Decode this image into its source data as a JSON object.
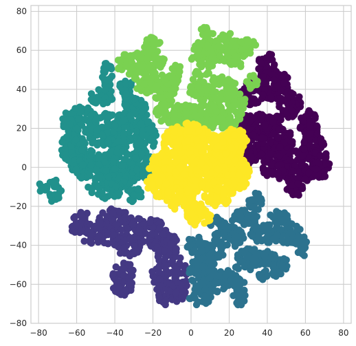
{
  "chart_data": {
    "type": "scatter",
    "title": "",
    "xlabel": "",
    "ylabel": "",
    "xlim": [
      -84,
      84
    ],
    "ylim": [
      -80,
      83
    ],
    "xticks": [
      -80,
      -60,
      -40,
      -20,
      0,
      20,
      40,
      60,
      80
    ],
    "yticks": [
      -80,
      -60,
      -40,
      -20,
      0,
      20,
      40,
      60,
      80
    ],
    "xtick_labels": [
      "−80",
      "−60",
      "−40",
      "−20",
      "0",
      "20",
      "40",
      "60",
      "80"
    ],
    "ytick_labels": [
      "−80",
      "−60",
      "−40",
      "−20",
      "0",
      "20",
      "40",
      "60",
      "80"
    ],
    "grid": true,
    "background": "#ffffff",
    "grid_color": "#cccccc",
    "series": [
      {
        "color": "#440154",
        "blobs": [
          [
            40,
            52,
            5,
            7
          ],
          [
            44,
            42,
            8,
            8
          ],
          [
            32,
            38,
            7,
            6
          ],
          [
            52,
            32,
            6,
            7
          ],
          [
            40,
            22,
            9,
            6
          ],
          [
            30,
            20,
            6,
            7
          ],
          [
            62,
            22,
            5,
            8
          ],
          [
            64,
            10,
            6,
            8
          ],
          [
            57,
            0,
            9,
            10
          ],
          [
            44,
            2,
            7,
            9
          ],
          [
            35,
            10,
            8,
            8
          ],
          [
            48,
            14,
            6,
            6
          ],
          [
            68,
            2,
            5,
            8
          ],
          [
            55,
            -10,
            6,
            5
          ],
          [
            28,
            4,
            4,
            6
          ]
        ]
      },
      {
        "color": "#443983",
        "blobs": [
          [
            -57,
            -27,
            5,
            4
          ],
          [
            -52,
            -34,
            7,
            5
          ],
          [
            -40,
            -28,
            9,
            7
          ],
          [
            -33,
            -40,
            7,
            6
          ],
          [
            -42,
            -37,
            4,
            4
          ],
          [
            -21,
            -33,
            7,
            8
          ],
          [
            -13,
            -41,
            6,
            9
          ],
          [
            -16,
            -55,
            5,
            6
          ],
          [
            -12,
            -65,
            7,
            6
          ],
          [
            -35,
            -55,
            6,
            6
          ],
          [
            -36,
            -62,
            5,
            4
          ],
          [
            -6,
            -57,
            4,
            12
          ],
          [
            -60,
            -31,
            3,
            3
          ],
          [
            -28,
            -30,
            4,
            4
          ]
        ]
      },
      {
        "color": "#21918c",
        "blobs": [
          [
            -44,
            45,
            3,
            9
          ],
          [
            -47,
            36,
            6,
            4
          ],
          [
            -58,
            24,
            10,
            7
          ],
          [
            -42,
            18,
            12,
            10
          ],
          [
            -62,
            10,
            7,
            7
          ],
          [
            -55,
            2,
            8,
            8
          ],
          [
            -38,
            0,
            12,
            10
          ],
          [
            -30,
            28,
            7,
            8
          ],
          [
            -24,
            16,
            6,
            8
          ],
          [
            -26,
            2,
            6,
            8
          ],
          [
            -44,
            -10,
            10,
            6
          ],
          [
            -72,
            -12,
            4,
            6
          ],
          [
            -78,
            -10,
            3,
            3
          ],
          [
            -30,
            -14,
            4,
            4
          ],
          [
            -62,
            22,
            6,
            4
          ],
          [
            -34,
            40,
            4,
            5
          ]
        ]
      },
      {
        "color": "#2c728e",
        "blobs": [
          [
            34,
            -18,
            4,
            5
          ],
          [
            28,
            -26,
            7,
            4
          ],
          [
            40,
            -34,
            9,
            5
          ],
          [
            52,
            -34,
            6,
            6
          ],
          [
            46,
            -26,
            5,
            4
          ],
          [
            20,
            -36,
            8,
            5
          ],
          [
            10,
            -44,
            7,
            6
          ],
          [
            34,
            -46,
            10,
            5
          ],
          [
            3,
            -40,
            5,
            5
          ],
          [
            5,
            -54,
            6,
            8
          ],
          [
            14,
            -58,
            5,
            6
          ],
          [
            22,
            -56,
            4,
            6
          ],
          [
            5,
            -66,
            6,
            5
          ],
          [
            26,
            -64,
            4,
            7
          ],
          [
            45,
            -50,
            6,
            5
          ],
          [
            40,
            -56,
            5,
            3
          ],
          [
            18,
            -32,
            5,
            4
          ],
          [
            12,
            -28,
            4,
            3
          ],
          [
            58,
            -40,
            3,
            6
          ],
          [
            31,
            -49,
            4,
            4
          ]
        ]
      },
      {
        "color": "#7ad151",
        "blobs": [
          [
            -30,
            53,
            9,
            6
          ],
          [
            -20,
            57,
            6,
            10
          ],
          [
            -24,
            45,
            6,
            7
          ],
          [
            -14,
            40,
            6,
            8
          ],
          [
            -2,
            26,
            8,
            6
          ],
          [
            10,
            26,
            8,
            7
          ],
          [
            20,
            24,
            6,
            5
          ],
          [
            16,
            40,
            8,
            7
          ],
          [
            6,
            55,
            6,
            10
          ],
          [
            16,
            62,
            9,
            8
          ],
          [
            24,
            57,
            5,
            6
          ],
          [
            30,
            62,
            5,
            4
          ],
          [
            -12,
            28,
            7,
            6
          ],
          [
            4,
            40,
            6,
            6
          ],
          [
            8,
            70,
            3,
            3
          ],
          [
            24,
            32,
            5,
            6
          ],
          [
            -8,
            48,
            4,
            5
          ],
          [
            32,
            44,
            3,
            4
          ]
        ]
      },
      {
        "color": "#fde725",
        "blobs": [
          [
            -8,
            12,
            7,
            8
          ],
          [
            6,
            10,
            10,
            10
          ],
          [
            16,
            4,
            8,
            10
          ],
          [
            -14,
            0,
            8,
            8
          ],
          [
            0,
            -4,
            12,
            10
          ],
          [
            14,
            -12,
            8,
            8
          ],
          [
            24,
            -6,
            6,
            6
          ],
          [
            -18,
            -10,
            6,
            6
          ],
          [
            -6,
            -16,
            8,
            6
          ],
          [
            4,
            -24,
            7,
            6
          ],
          [
            24,
            16,
            6,
            5
          ],
          [
            -2,
            18,
            8,
            5
          ],
          [
            10,
            -2,
            10,
            8
          ],
          [
            20,
            10,
            8,
            8
          ],
          [
            26,
            -2,
            5,
            6
          ]
        ]
      }
    ]
  }
}
